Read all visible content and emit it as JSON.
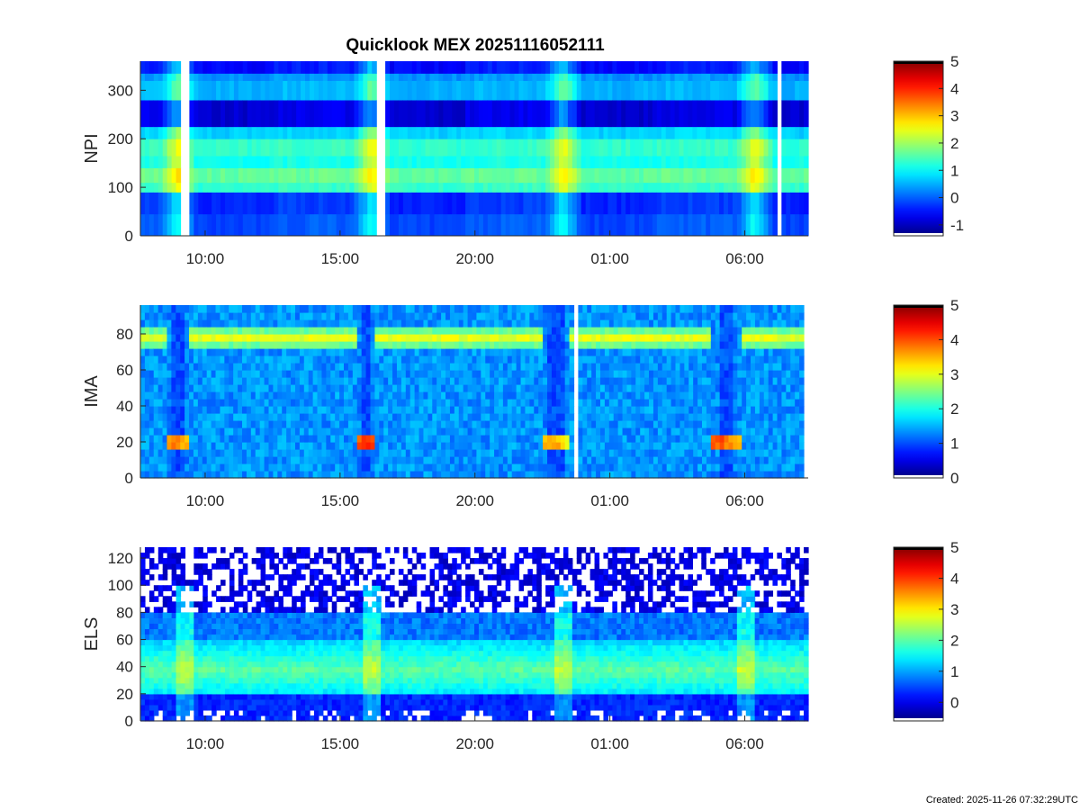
{
  "title": "Quicklook MEX 20251116052111",
  "created": "Created: 2025-11-26 07:32:29UTC",
  "chart_data": [
    {
      "type": "heatmap",
      "ylabel": "NPI",
      "x_tick_labels": [
        "10:00",
        "15:00",
        "20:00",
        "01:00",
        "06:00"
      ],
      "x_tick_hours": [
        10,
        15,
        20,
        25,
        30
      ],
      "xlim_hours": [
        7.6,
        32.35
      ],
      "ylim": [
        0,
        360
      ],
      "y_ticks": [
        0,
        100,
        200,
        300
      ],
      "colorbar": {
        "range": [
          -1.4,
          5
        ],
        "ticks": [
          -1,
          0,
          1,
          2,
          3,
          4,
          5
        ]
      },
      "data_gaps_hours": [
        [
          9.15,
          9.35
        ],
        [
          16.3,
          16.45
        ],
        [
          16.55,
          16.7
        ],
        [
          31.15,
          31.35
        ]
      ],
      "bands": [
        {
          "ylo": 0,
          "yhi": 45,
          "value": -0.2
        },
        {
          "ylo": 45,
          "yhi": 90,
          "value": -0.4
        },
        {
          "ylo": 90,
          "yhi": 110,
          "value": 1.3
        },
        {
          "ylo": 110,
          "yhi": 140,
          "value": 1.6
        },
        {
          "ylo": 140,
          "yhi": 165,
          "value": 1.1
        },
        {
          "ylo": 165,
          "yhi": 200,
          "value": 1.3
        },
        {
          "ylo": 200,
          "yhi": 225,
          "value": 0.7
        },
        {
          "ylo": 225,
          "yhi": 280,
          "value": -0.9
        },
        {
          "ylo": 280,
          "yhi": 320,
          "value": 0.5
        },
        {
          "ylo": 320,
          "yhi": 335,
          "value": 0.3
        },
        {
          "ylo": 335,
          "yhi": 360,
          "value": -0.6
        }
      ],
      "periapsis_hours": [
        9.0,
        16.2,
        23.3,
        30.4
      ]
    },
    {
      "type": "heatmap",
      "ylabel": "IMA",
      "x_tick_labels": [
        "10:00",
        "15:00",
        "20:00",
        "01:00",
        "06:00"
      ],
      "x_tick_hours": [
        10,
        15,
        20,
        25,
        30
      ],
      "xlim_hours": [
        7.6,
        32.35
      ],
      "ylim": [
        0,
        96
      ],
      "y_ticks": [
        0,
        20,
        40,
        60,
        80
      ],
      "colorbar": {
        "range": [
          0,
          5
        ],
        "ticks": [
          0,
          1,
          2,
          3,
          4,
          5
        ]
      },
      "data_gaps_hours": [
        [
          23.85,
          23.92
        ]
      ],
      "background_value": 1.35,
      "solar_wind_band": {
        "y_center": 78,
        "peak_value": 3.0
      },
      "periapsis": [
        {
          "start": 8.55,
          "end": 9.35,
          "peak_y": 21,
          "peak_value": 3.8
        },
        {
          "start": 15.7,
          "end": 16.4,
          "peak_y": 21,
          "peak_value": 4.2
        },
        {
          "start": 22.6,
          "end": 23.6,
          "peak_y": 21,
          "peak_value": 3.7
        },
        {
          "start": 28.9,
          "end": 30.0,
          "peak_y": 21,
          "peak_value": 4.0
        }
      ]
    },
    {
      "type": "heatmap",
      "ylabel": "ELS",
      "x_tick_labels": [
        "10:00",
        "15:00",
        "20:00",
        "01:00",
        "06:00"
      ],
      "x_tick_hours": [
        10,
        15,
        20,
        25,
        30
      ],
      "xlim_hours": [
        7.6,
        32.35
      ],
      "ylim": [
        0,
        128
      ],
      "y_ticks": [
        0,
        20,
        40,
        60,
        80,
        100,
        120
      ],
      "colorbar": {
        "range": [
          -0.6,
          5
        ],
        "ticks": [
          0,
          1,
          2,
          3,
          4,
          5
        ]
      },
      "core_band": {
        "ylo": 20,
        "yhi": 60,
        "peak_value": 2.0
      },
      "noise_above_y": 80,
      "bursts_hours": [
        9.2,
        16.2,
        23.3,
        30.1
      ]
    }
  ]
}
